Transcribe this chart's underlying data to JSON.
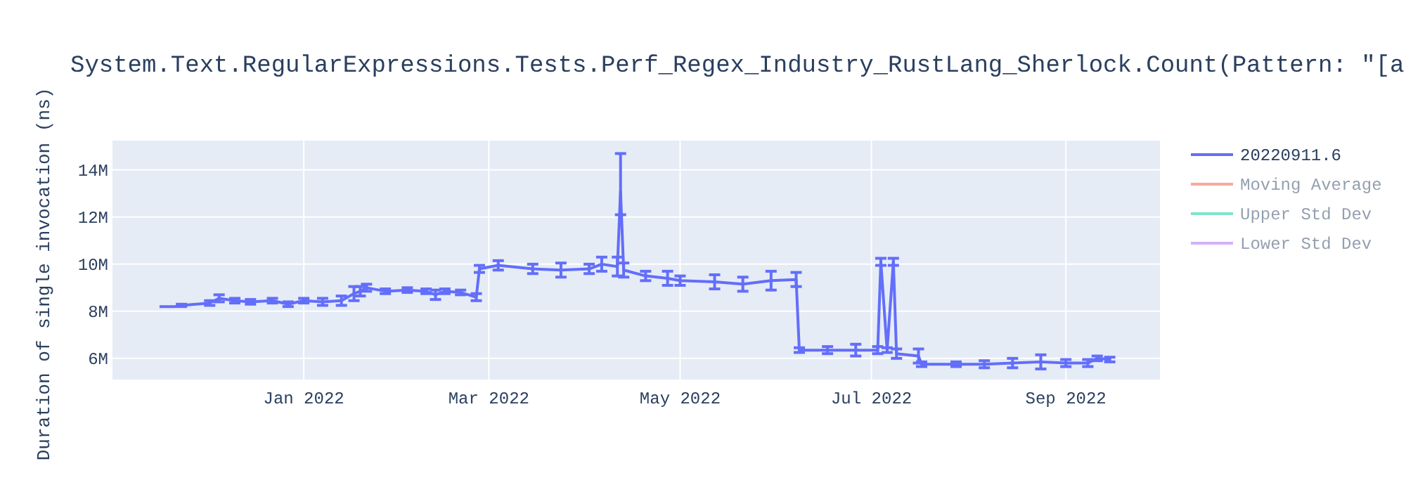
{
  "chart_data": {
    "type": "line",
    "title": "System.Text.RegularExpressions.Tests.Perf_Regex_Industry_RustLang_Sherlock.Count(Pattern: \"[a",
    "ylabel": "Duration of single invocation (ns)",
    "x": [
      "2021-11-16",
      "2021-11-21",
      "2021-11-23",
      "2021-12-02",
      "2021-12-05",
      "2021-12-10",
      "2021-12-15",
      "2021-12-22",
      "2021-12-27",
      "2022-01-01",
      "2022-01-07",
      "2022-01-13",
      "2022-01-17",
      "2022-01-19",
      "2022-01-21",
      "2022-01-27",
      "2022-02-03",
      "2022-02-09",
      "2022-02-12",
      "2022-02-15",
      "2022-02-20",
      "2022-02-25",
      "2022-02-26",
      "2022-03-04",
      "2022-03-15",
      "2022-03-24",
      "2022-04-02",
      "2022-04-06",
      "2022-04-11",
      "2022-04-12",
      "2022-04-13",
      "2022-04-20",
      "2022-04-27",
      "2022-05-01",
      "2022-05-12",
      "2022-05-21",
      "2022-05-30",
      "2022-06-07",
      "2022-06-08",
      "2022-06-17",
      "2022-06-26",
      "2022-07-03",
      "2022-07-04",
      "2022-07-06",
      "2022-07-08",
      "2022-07-09",
      "2022-07-16",
      "2022-07-17",
      "2022-07-28",
      "2022-08-06",
      "2022-08-15",
      "2022-08-24",
      "2022-09-01",
      "2022-09-08",
      "2022-09-11",
      "2022-09-15"
    ],
    "series": [
      {
        "name": "20220911.6",
        "color": "#636efa",
        "values": [
          8200000,
          8200000,
          8250000,
          8350000,
          8550000,
          8450000,
          8400000,
          8450000,
          8300000,
          8450000,
          8400000,
          8450000,
          8750000,
          8850000,
          9000000,
          8850000,
          8900000,
          8850000,
          8700000,
          8850000,
          8800000,
          8600000,
          9800000,
          9950000,
          9800000,
          9750000,
          9800000,
          10000000,
          9900000,
          13100000,
          9750000,
          9500000,
          9400000,
          9300000,
          9250000,
          9150000,
          9300000,
          9350000,
          6350000,
          6350000,
          6350000,
          6350000,
          10100000,
          6350000,
          10100000,
          6200000,
          6100000,
          5750000,
          5750000,
          5750000,
          5800000,
          5850000,
          5800000,
          5800000,
          6000000,
          5950000
        ],
        "errors": [
          null,
          null,
          50000,
          100000,
          150000,
          100000,
          100000,
          100000,
          100000,
          100000,
          150000,
          200000,
          300000,
          200000,
          150000,
          100000,
          100000,
          100000,
          200000,
          100000,
          100000,
          150000,
          150000,
          200000,
          200000,
          300000,
          200000,
          300000,
          400000,
          [
            12100000,
            14700000
          ],
          300000,
          200000,
          300000,
          200000,
          300000,
          300000,
          400000,
          300000,
          100000,
          150000,
          250000,
          150000,
          150000,
          100000,
          150000,
          200000,
          300000,
          100000,
          100000,
          150000,
          200000,
          300000,
          150000,
          150000,
          100000,
          100000
        ]
      },
      {
        "name": "Moving Average",
        "color": "#ef553b",
        "values": [
          null,
          null,
          null,
          null,
          null,
          null,
          null,
          null,
          null,
          null,
          null,
          null,
          null,
          null,
          null,
          null,
          null,
          null,
          null,
          null,
          null,
          null,
          null,
          null,
          null,
          null,
          null,
          null,
          null,
          null,
          null,
          null,
          null,
          null,
          null,
          null,
          null,
          null,
          null,
          null,
          null,
          null,
          null,
          null,
          null,
          null,
          null,
          null,
          null,
          null,
          null,
          null,
          null,
          null,
          null,
          null
        ]
      },
      {
        "name": "Upper Std Dev",
        "color": "#00cc96",
        "values": [
          null,
          null,
          null,
          null,
          null,
          null,
          null,
          null,
          null,
          null,
          null,
          null,
          null,
          null,
          null,
          null,
          null,
          null,
          null,
          null,
          null,
          null,
          null,
          null,
          null,
          null,
          null,
          null,
          null,
          null,
          null,
          null,
          null,
          null,
          null,
          null,
          null,
          null,
          null,
          null,
          null,
          null,
          null,
          null,
          null,
          null,
          null,
          null,
          null,
          null,
          null,
          null,
          null,
          null,
          null,
          null
        ]
      },
      {
        "name": "Lower Std Dev",
        "color": "#ab63fa",
        "values": [
          null,
          null,
          null,
          null,
          null,
          null,
          null,
          null,
          null,
          null,
          null,
          null,
          null,
          null,
          null,
          null,
          null,
          null,
          null,
          null,
          null,
          null,
          null,
          null,
          null,
          null,
          null,
          null,
          null,
          null,
          null,
          null,
          null,
          null,
          null,
          null,
          null,
          null,
          null,
          null,
          null,
          null,
          null,
          null,
          null,
          null,
          null,
          null,
          null,
          null,
          null,
          null,
          null,
          null,
          null,
          null
        ]
      }
    ],
    "xlim": [
      "2021-11-01",
      "2022-10-01"
    ],
    "xticks": [
      {
        "value": "2022-01-01",
        "label": "Jan 2022"
      },
      {
        "value": "2022-03-01",
        "label": "Mar 2022"
      },
      {
        "value": "2022-05-01",
        "label": "May 2022"
      },
      {
        "value": "2022-07-01",
        "label": "Jul 2022"
      },
      {
        "value": "2022-09-01",
        "label": "Sep 2022"
      }
    ],
    "ylim": [
      5100000,
      15250000
    ],
    "yticks": [
      {
        "value": 6000000,
        "label": "6M"
      },
      {
        "value": 8000000,
        "label": "8M"
      },
      {
        "value": 10000000,
        "label": "10M"
      },
      {
        "value": 12000000,
        "label": "12M"
      },
      {
        "value": 14000000,
        "label": "14M"
      }
    ],
    "grid": true,
    "legend": "right",
    "marker": "none",
    "line_style": "solid"
  }
}
